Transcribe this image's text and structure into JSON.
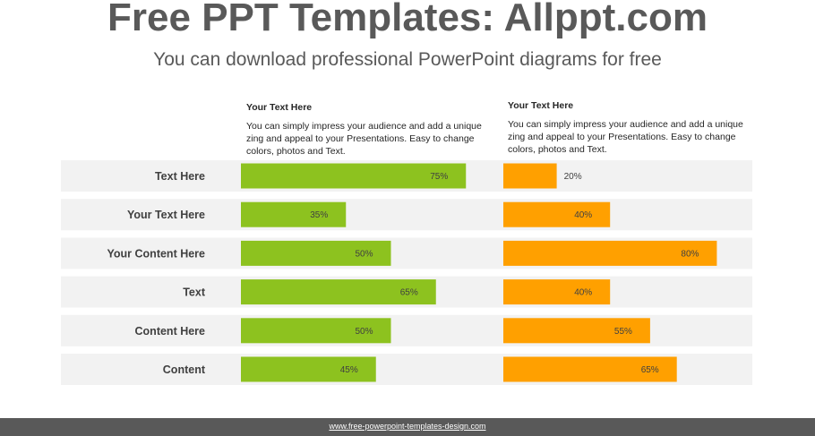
{
  "header": {
    "title": "Free PPT Templates: Allppt.com",
    "subtitle": "You can download professional PowerPoint diagrams for free"
  },
  "text_boxes": [
    {
      "heading": "Your Text  Here",
      "body": "You can simply impress your audience and add a unique zing and appeal to your Presentations. Easy to change colors, photos and Text."
    },
    {
      "heading": "Your Text  Here",
      "body": "You can simply impress your audience and add a unique zing and appeal to your Presentations. Easy to change colors, photos and Text."
    }
  ],
  "chart_data": {
    "type": "bar",
    "orientation": "horizontal",
    "categories": [
      "Text Here",
      "Your Text Here",
      "Your Content  Here",
      "Text",
      "Content Here",
      "Content"
    ],
    "series": [
      {
        "values": [
          75,
          35,
          50,
          65,
          50,
          45
        ],
        "value_labels": [
          "75%",
          "35%",
          "50%",
          "65%",
          "50%",
          "45%"
        ],
        "color": "#8DC21F"
      },
      {
        "values": [
          20,
          40,
          80,
          40,
          55,
          65
        ],
        "value_labels": [
          "20%",
          "40%",
          "80%",
          "40%",
          "55%",
          "65%"
        ],
        "color": "#FFA000"
      }
    ],
    "xlim": [
      0,
      100
    ],
    "row_background": "#F2F2F2"
  },
  "footer": {
    "text": "www.free-powerpoint-templates-design.com",
    "background": "#595959"
  }
}
